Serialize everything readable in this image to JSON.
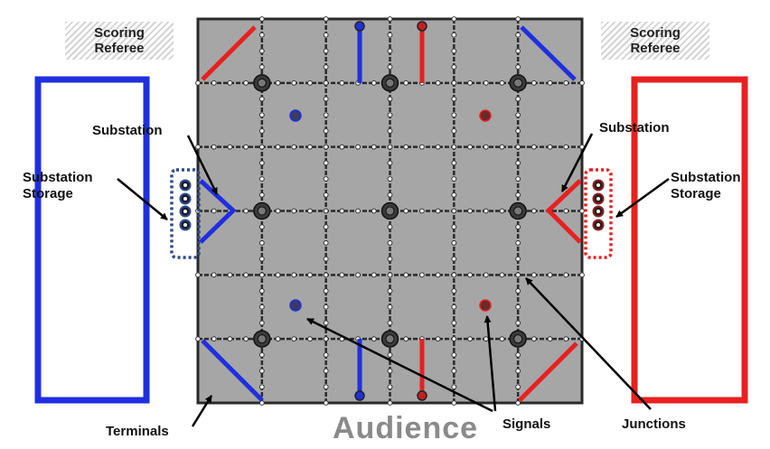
{
  "referee": {
    "left": [
      "Scoring",
      "Referee"
    ],
    "right": [
      "Scoring",
      "Referee"
    ]
  },
  "labels": {
    "substation_left": "Substation",
    "substation_right": "Substation",
    "storage_left": [
      "Substation",
      "Storage"
    ],
    "storage_right": [
      "Substation",
      "Storage"
    ],
    "terminals": "Terminals",
    "signals": "Signals",
    "junctions": "Junctions",
    "audience": "Audience"
  },
  "colors": {
    "blue_alliance": "#1f2fe0",
    "red_alliance": "#e82020",
    "field_tile": "#a6a6a6",
    "seam": "#2a2a2a",
    "storage_blue_outline": "#2e4a8a",
    "storage_red_outline": "#e82020"
  }
}
